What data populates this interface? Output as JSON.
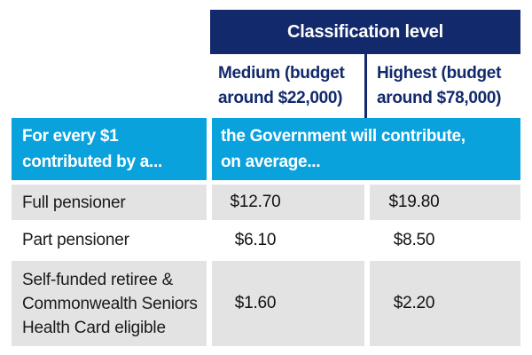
{
  "table": {
    "title": "Classification level",
    "column_headers": {
      "medium": {
        "line1": "Medium (budget",
        "line2": "around $22,000)"
      },
      "highest": {
        "line1": "Highest (budget",
        "line2": "around $78,000)"
      }
    },
    "lead_row": {
      "left": {
        "line1": "For every $1",
        "line2": "contributed by a..."
      },
      "right": {
        "line1": "the Government will contribute,",
        "line2": "on average..."
      }
    },
    "rows": [
      {
        "label": "Full pensioner",
        "medium": "$12.70",
        "highest": "$19.80"
      },
      {
        "label": "Part pensioner",
        "medium": "$6.10",
        "highest": "$8.50"
      },
      {
        "label": "Self-funded retiree & Commonwealth Seniors Health Card eligible",
        "medium": "$1.60",
        "highest": "$2.20"
      }
    ],
    "colors": {
      "navy": "#12296b",
      "bright_blue": "#0aa2dd",
      "light_gray": "#e4e3e3",
      "body_text": "#1a1a1a"
    }
  },
  "chart_data": {
    "type": "table",
    "title": "Classification level",
    "columns": [
      "For every $1 contributed by a...",
      "Medium (budget around $22,000)",
      "Highest (budget around $78,000)"
    ],
    "rows": [
      [
        "Full pensioner",
        "$12.70",
        "$19.80"
      ],
      [
        "Part pensioner",
        "$6.10",
        "$8.50"
      ],
      [
        "Self-funded retiree & Commonwealth Seniors Health Card eligible",
        "$1.60",
        "$2.20"
      ]
    ],
    "note": "the Government will contribute, on average..."
  }
}
